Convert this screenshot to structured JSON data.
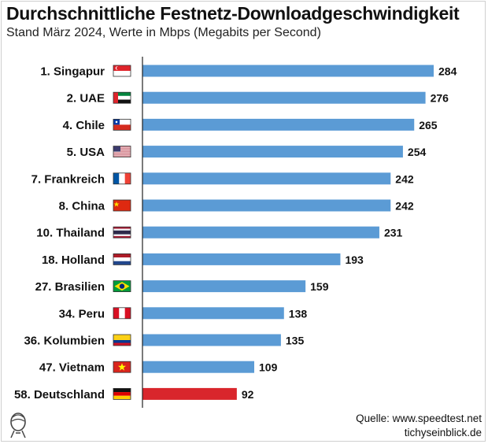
{
  "header": {
    "title": "Durchschnittliche Festnetz-Downloadgeschwindigkeit",
    "subtitle": "Stand März 2024, Werte in Mbps (Megabits per Second)"
  },
  "footer": {
    "source": "Quelle: www.speedtest.net",
    "site": "tichyseinblick.de"
  },
  "colors": {
    "bar": "#5b9bd5",
    "highlight": "#d9262c",
    "axis": "#222222"
  },
  "chart_data": {
    "type": "bar",
    "orientation": "horizontal",
    "categories": [
      "1. Singapur",
      "2. UAE",
      "4. Chile",
      "5. USA",
      "7. Frankreich",
      "8. China",
      "10. Thailand",
      "18. Holland",
      "27. Brasilien",
      "34. Peru",
      "36. Kolumbien",
      "47. Vietnam",
      "58. Deutschland"
    ],
    "flags": [
      "singapore-flag-icon",
      "uae-flag-icon",
      "chile-flag-icon",
      "usa-flag-icon",
      "france-flag-icon",
      "china-flag-icon",
      "thailand-flag-icon",
      "netherlands-flag-icon",
      "brazil-flag-icon",
      "peru-flag-icon",
      "colombia-flag-icon",
      "vietnam-flag-icon",
      "germany-flag-icon"
    ],
    "values": [
      284,
      276,
      265,
      254,
      242,
      242,
      231,
      193,
      159,
      138,
      135,
      109,
      92
    ],
    "value_labels": [
      "284",
      "276",
      "265",
      "254",
      "242",
      "242",
      "231",
      "193",
      "159",
      "138",
      "135",
      "109",
      "92"
    ],
    "highlight": "58. Deutschland",
    "xlim": [
      0,
      300
    ],
    "grid": false,
    "legend": "none"
  }
}
